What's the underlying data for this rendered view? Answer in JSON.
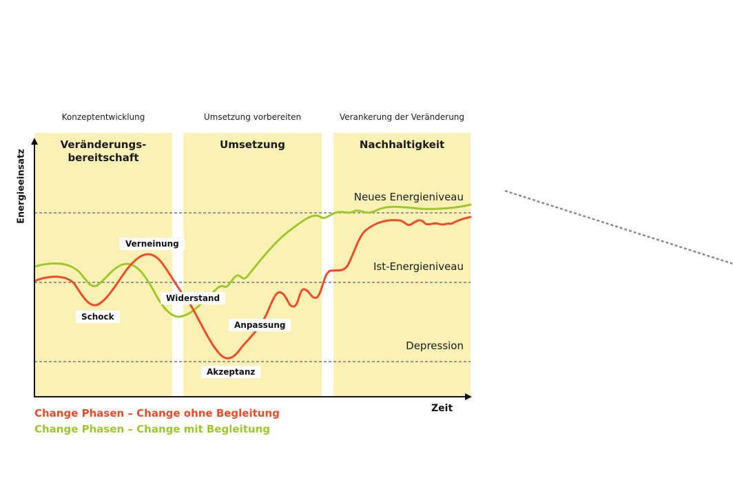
{
  "phases_top": {
    "p1": "Konzeptentwicklung",
    "p2": "Umsetzung vorbereiten",
    "p3": "Verankerung der Veränderung"
  },
  "phase_titles": {
    "p1_line1": "Veränderungs-",
    "p1_line2": "bereitschaft",
    "p2": "Umsetzung",
    "p3": "Nachhaltigkeit"
  },
  "levels": {
    "new": "Neues Energieniveau",
    "current": "Ist-Energieniveau",
    "depression": "Depression"
  },
  "stages": {
    "denial": "Verneinung",
    "shock": "Schock",
    "resistance": "Widerstand",
    "adaptation": "Anpassung",
    "acceptance": "Akzeptanz"
  },
  "axes": {
    "y": "Energieeinsatz",
    "x": "Zeit"
  },
  "legend": {
    "without": "Change Phasen – Change ohne Begleitung",
    "with": "Change Phasen – Change mit Begleitung"
  },
  "colors": {
    "without": "#f24a26",
    "with": "#9cc82c",
    "panel": "#fbf1b4"
  }
}
